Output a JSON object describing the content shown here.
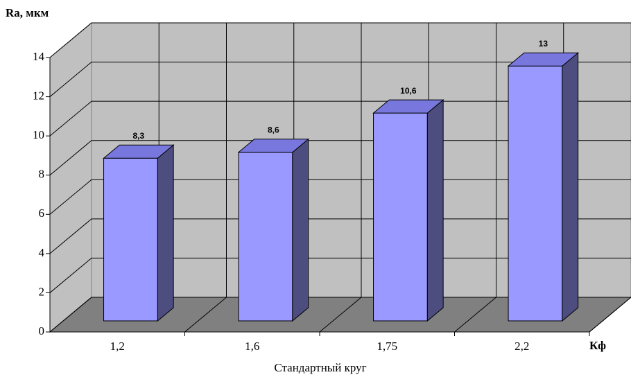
{
  "chart_data": {
    "type": "bar3d",
    "ylabel": "Ra, мкм",
    "xlabel": "Стандартный круг",
    "x_end_label": "Кф",
    "categories": [
      "1,2",
      "1,6",
      "1,75",
      "2,2"
    ],
    "values": [
      8.3,
      8.6,
      10.6,
      13
    ],
    "value_labels": [
      "8,3",
      "8,6",
      "10,6",
      "13"
    ],
    "color": "#9999ff",
    "ylim": [
      0,
      14
    ],
    "yticks": [
      0,
      2,
      4,
      6,
      8,
      10,
      12,
      14
    ],
    "grid": true
  }
}
